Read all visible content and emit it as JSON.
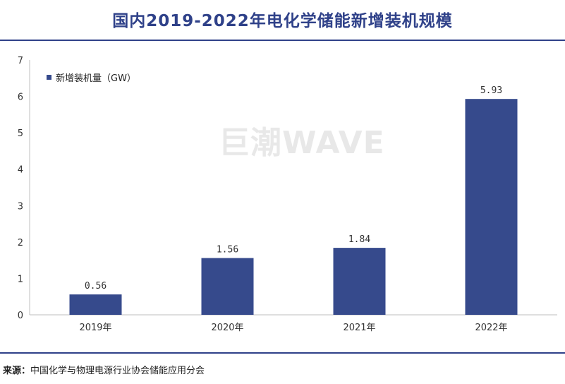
{
  "title": "国内2019-2022年电化学储能新增装机规模",
  "watermark": "巨潮WAVE",
  "source": {
    "label": "来源：",
    "text": "中国化学与物理电源行业协会储能应用分会"
  },
  "colors": {
    "bar": "#364a8c",
    "title": "#2f4189",
    "axis": "#bfbfbf"
  },
  "chart_data": {
    "type": "bar",
    "title": "国内2019-2022年电化学储能新增装机规模",
    "categories": [
      "2019年",
      "2020年",
      "2021年",
      "2022年"
    ],
    "series": [
      {
        "name": "新增装机量（GW）",
        "values": [
          0.56,
          1.56,
          1.84,
          5.93
        ]
      }
    ],
    "data_labels": [
      "0.56",
      "1.56",
      "1.84",
      "5.93"
    ],
    "yticks": [
      "0",
      "1",
      "2",
      "3",
      "4",
      "5",
      "6",
      "7"
    ],
    "ylim": [
      0,
      7
    ],
    "xlabel": "",
    "ylabel": "",
    "grid": false,
    "legend_position": "top-left"
  }
}
